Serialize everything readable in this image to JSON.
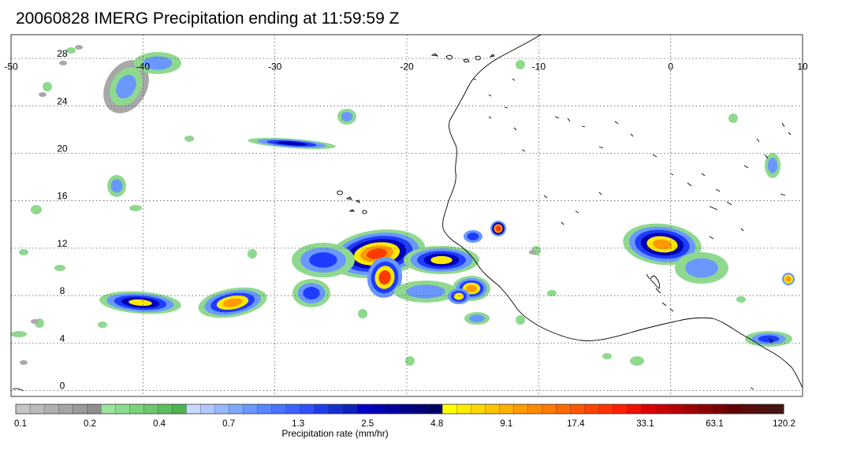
{
  "title": "20060828 IMERG Precipitation ending at 11:59:59 Z",
  "map": {
    "lon_range": [
      -50,
      10
    ],
    "lat_range": [
      -0.5,
      30
    ],
    "lon_ticks": [
      {
        "value": -50,
        "label": "-50"
      },
      {
        "value": -40,
        "label": "-40"
      },
      {
        "value": -30,
        "label": "-30"
      },
      {
        "value": -20,
        "label": "-20"
      },
      {
        "value": -10,
        "label": "-10"
      },
      {
        "value": 0,
        "label": "0"
      },
      {
        "value": 10,
        "label": "10"
      }
    ],
    "lat_ticks": [
      {
        "value": 0,
        "label": "0"
      },
      {
        "value": 4,
        "label": "4"
      },
      {
        "value": 8,
        "label": "8"
      },
      {
        "value": 12,
        "label": "12"
      },
      {
        "value": 16,
        "label": "16"
      },
      {
        "value": 20,
        "label": "20"
      },
      {
        "value": 24,
        "label": "24"
      },
      {
        "value": 28,
        "label": "28"
      }
    ],
    "gridlines": "dotted",
    "coastline_color": "#000000"
  },
  "colorbar": {
    "title": "Precipitation rate (mm/hr)",
    "labels": [
      "0.1",
      "0.2",
      "0.4",
      "0.7",
      "1.3",
      "2.5",
      "4.8",
      "9.1",
      "17.4",
      "33.1",
      "63.1",
      "120.2"
    ],
    "colors": [
      "#c6c6c6",
      "#bbbbbb",
      "#b0b0b0",
      "#a5a5a5",
      "#9a9a9a",
      "#8f8f8f",
      "#9de39d",
      "#8ddc8d",
      "#7cd27c",
      "#6dc86d",
      "#5ebe5e",
      "#50b450",
      "#c8d8ff",
      "#b0c8ff",
      "#98b8ff",
      "#80a8ff",
      "#6a98ff",
      "#5a86ff",
      "#4a74ff",
      "#3c62ff",
      "#2e50ff",
      "#203ee8",
      "#1630d0",
      "#0c22b8",
      "#0000c8",
      "#0000b4",
      "#0000a0",
      "#00008c",
      "#000078",
      "#000064",
      "#ffff00",
      "#ffec00",
      "#ffd800",
      "#ffc400",
      "#ffb000",
      "#ff9c00",
      "#ff8c00",
      "#ff7a00",
      "#ff6800",
      "#ff5600",
      "#ff4400",
      "#ff3200",
      "#ff2000",
      "#f01000",
      "#dc0000",
      "#c80000",
      "#b40000",
      "#a00000",
      "#8c0000",
      "#780000",
      "#640000",
      "#5a0a0a",
      "#501010",
      "#461414"
    ]
  },
  "precip_features": [
    {
      "name": "west-cluster-8N",
      "lon": -42,
      "lat": 7.6,
      "peak": "4.8"
    },
    {
      "name": "cluster-minus33-7N",
      "lon": -33.5,
      "lat": 7.5,
      "peak": "9.1"
    },
    {
      "name": "main-system-minus21-11N",
      "lon": -21,
      "lat": 11.5,
      "peak": "17.4"
    },
    {
      "name": "band-21N",
      "lon": -29,
      "lat": 20.8,
      "peak": "2.5"
    },
    {
      "name": "coastal-cell-minus12-14N",
      "lon": -12.5,
      "lat": 14,
      "peak": "17.4"
    },
    {
      "name": "cell-minus15-9N",
      "lon": -15,
      "lat": 9,
      "peak": "17.4"
    },
    {
      "name": "sahel-system-1E-13N",
      "lon": 1,
      "lat": 12.5,
      "peak": "9.1"
    },
    {
      "name": "nw-band-28N",
      "lon": -43,
      "lat": 26,
      "peak": "1.3"
    }
  ]
}
